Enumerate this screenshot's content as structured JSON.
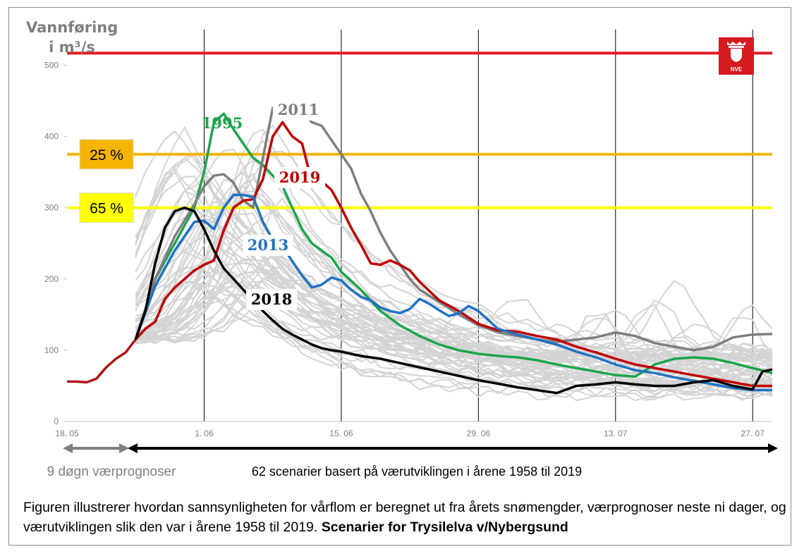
{
  "chart_data": {
    "type": "line",
    "ylabel_line1": "Vannføring",
    "ylabel_line2": "i m³/s",
    "ylim": [
      0,
      550
    ],
    "yticks": [
      0,
      100,
      200,
      300,
      400,
      500
    ],
    "xlim": [
      0,
      72
    ],
    "xticks": [
      {
        "x": 0,
        "label": "18. 05"
      },
      {
        "x": 14,
        "label": "1. 06"
      },
      {
        "x": 28,
        "label": "15. 06"
      },
      {
        "x": 42,
        "label": "29. 06"
      },
      {
        "x": 56,
        "label": "13. 07"
      },
      {
        "x": 70,
        "label": "27. 07"
      }
    ],
    "grid": "vertical",
    "thresholds": [
      {
        "value": 517,
        "color": "#e31b23",
        "label": ""
      },
      {
        "value": 375,
        "color": "#f4b400",
        "label": "25 %",
        "label_bg": "#f4b400"
      },
      {
        "value": 300,
        "color": "#ffff00",
        "label": "65 %",
        "label_bg": "#ffff00"
      }
    ],
    "history": {
      "x": [
        0,
        1,
        2,
        3,
        4,
        5,
        6,
        7
      ],
      "values": [
        56,
        56,
        55,
        60,
        76,
        88,
        97,
        115
      ],
      "color": "#b01515"
    },
    "highlight_series": [
      {
        "name": "1995",
        "color": "#1aa64a",
        "x": [
          7,
          9,
          11,
          13,
          14,
          15,
          16,
          17,
          18,
          19,
          20,
          21,
          22,
          23,
          24,
          25,
          26,
          27,
          28,
          30,
          32,
          34,
          36,
          38,
          40,
          42,
          44,
          46,
          48,
          50,
          52,
          54,
          56,
          58,
          60,
          62,
          64,
          66,
          68,
          70,
          72
        ],
        "values": [
          115,
          200,
          250,
          300,
          350,
          420,
          432,
          410,
          390,
          370,
          360,
          345,
          330,
          300,
          270,
          250,
          240,
          230,
          210,
          185,
          155,
          135,
          120,
          108,
          100,
          95,
          92,
          90,
          86,
          80,
          75,
          70,
          65,
          63,
          80,
          88,
          90,
          88,
          82,
          75,
          68
        ]
      },
      {
        "name": "2011",
        "color": "#7f7f7f",
        "x": [
          7,
          9,
          11,
          13,
          14,
          15,
          16,
          17,
          18,
          19,
          20,
          21,
          22,
          23,
          24,
          25,
          26,
          27,
          28,
          29,
          30,
          31,
          32,
          33,
          34,
          35,
          36,
          38,
          40,
          42,
          44,
          46,
          48,
          50,
          52,
          54,
          56,
          58,
          60,
          62,
          64,
          66,
          68,
          70,
          72
        ],
        "values": [
          115,
          200,
          260,
          305,
          330,
          345,
          347,
          335,
          310,
          300,
          370,
          440,
          438,
          450,
          435,
          420,
          415,
          395,
          375,
          355,
          320,
          295,
          265,
          240,
          220,
          200,
          185,
          168,
          150,
          135,
          125,
          120,
          115,
          112,
          115,
          118,
          125,
          120,
          110,
          105,
          100,
          105,
          118,
          122,
          123
        ]
      },
      {
        "name": "2019",
        "color": "#c00000",
        "x": [
          7,
          8,
          9,
          10,
          11,
          12,
          13,
          14,
          15,
          16,
          17,
          18,
          19,
          20,
          21,
          22,
          23,
          24,
          25,
          26,
          27,
          28,
          29,
          30,
          31,
          32,
          33,
          34,
          35,
          36,
          38,
          40,
          42,
          44,
          46,
          48,
          50,
          52,
          54,
          56,
          58,
          60,
          62,
          64,
          66,
          68,
          70,
          72
        ],
        "values": [
          115,
          130,
          140,
          172,
          188,
          200,
          212,
          220,
          226,
          268,
          300,
          310,
          312,
          340,
          400,
          420,
          400,
          390,
          336,
          337,
          325,
          300,
          272,
          248,
          222,
          220,
          226,
          220,
          212,
          196,
          170,
          155,
          137,
          128,
          126,
          120,
          115,
          105,
          97,
          88,
          80,
          75,
          70,
          65,
          60,
          55,
          50,
          50
        ]
      },
      {
        "name": "2013",
        "color": "#1f72c4",
        "x": [
          7,
          9,
          11,
          13,
          14,
          15,
          16,
          17,
          18,
          19,
          20,
          21,
          22,
          23,
          24,
          25,
          26,
          27,
          28,
          29,
          30,
          31,
          32,
          33,
          34,
          35,
          36,
          37,
          38,
          39,
          40,
          41,
          42,
          44,
          46,
          48,
          50,
          52,
          54,
          56,
          58,
          60,
          62,
          64,
          66,
          68,
          70,
          72
        ],
        "values": [
          115,
          190,
          240,
          280,
          282,
          270,
          300,
          318,
          318,
          315,
          280,
          255,
          245,
          225,
          205,
          188,
          192,
          202,
          198,
          185,
          175,
          170,
          160,
          155,
          152,
          158,
          172,
          165,
          156,
          148,
          152,
          162,
          155,
          130,
          122,
          115,
          108,
          98,
          90,
          80,
          72,
          68,
          62,
          57,
          52,
          47,
          44,
          44
        ]
      },
      {
        "name": "2018",
        "color": "#000000",
        "x": [
          7,
          8,
          9,
          10,
          11,
          12,
          13,
          14,
          15,
          16,
          17,
          18,
          19,
          20,
          21,
          22,
          23,
          24,
          25,
          26,
          27,
          28,
          30,
          32,
          34,
          36,
          38,
          40,
          42,
          44,
          46,
          48,
          50,
          52,
          54,
          56,
          58,
          60,
          62,
          64,
          66,
          68,
          70,
          71,
          72
        ],
        "values": [
          115,
          155,
          222,
          272,
          295,
          300,
          295,
          270,
          240,
          215,
          200,
          185,
          170,
          155,
          142,
          130,
          122,
          115,
          108,
          103,
          100,
          98,
          92,
          88,
          82,
          76,
          70,
          64,
          58,
          53,
          48,
          44,
          40,
          50,
          52,
          55,
          52,
          50,
          50,
          55,
          58,
          50,
          45,
          70,
          73
        ]
      }
    ],
    "annotations": [
      {
        "text": "9 døgn værprognoser",
        "color": "#7f7f7f"
      },
      {
        "text": "62 scenarier basert på værutviklingen i årene 1958 til 2019",
        "color": "#000000"
      }
    ]
  },
  "logo": {
    "text": "NVE",
    "color": "#d71920"
  },
  "caption": {
    "text": "Figuren illustrerer hvordan sannsynligheten for vårflom er beregnet ut fra årets snømengder, værprognoser neste ni dager, og værutviklingen slik den var i årene 1958 til 2019. ",
    "bold": "Scenarier for Trysilelva v/Nybergsund"
  }
}
